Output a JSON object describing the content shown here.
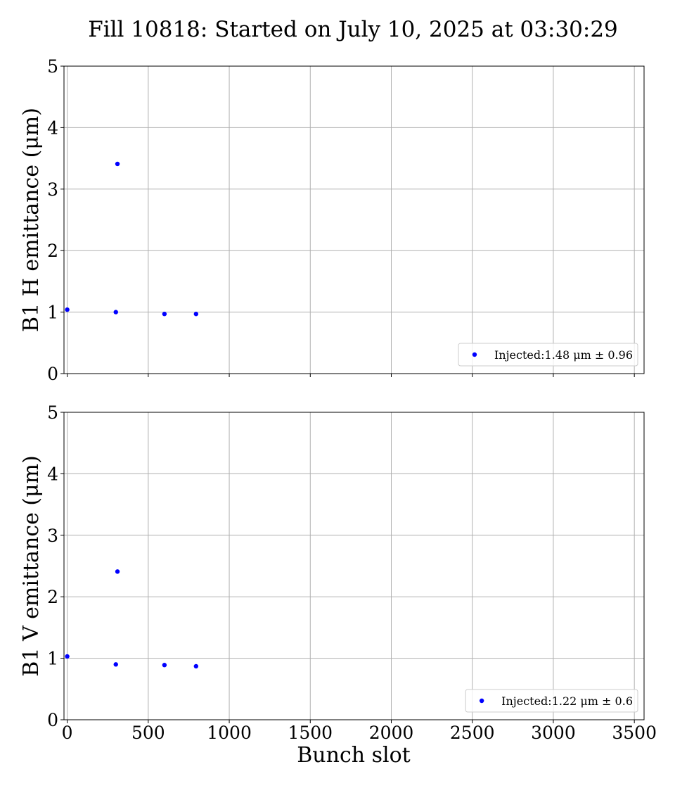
{
  "chart_data": {
    "type": "scatter",
    "title": "Fill 10818: Started on July 10, 2025 at 03:30:29",
    "xlabel": "Bunch slot",
    "xlim": [
      -20,
      3560
    ],
    "xticks": [
      0,
      500,
      1000,
      1500,
      2000,
      2500,
      3000,
      3500
    ],
    "grid": true,
    "marker_color": "#0000ff",
    "panels": [
      {
        "ylabel": "B1 H emittance (μm)",
        "ylim": [
          0,
          5
        ],
        "yticks": [
          0,
          1,
          2,
          3,
          4,
          5
        ],
        "legend_position": "lower-right",
        "series": [
          {
            "name": "Injected:1.48 μm ± 0.96",
            "color": "#0000ff",
            "points": [
              {
                "x": 0,
                "y": 1.04
              },
              {
                "x": 300,
                "y": 1.0
              },
              {
                "x": 310,
                "y": 3.41
              },
              {
                "x": 600,
                "y": 0.97
              },
              {
                "x": 795,
                "y": 0.97
              }
            ]
          }
        ]
      },
      {
        "ylabel": "B1 V emittance (μm)",
        "ylim": [
          0,
          5
        ],
        "yticks": [
          0,
          1,
          2,
          3,
          4,
          5
        ],
        "legend_position": "lower-right",
        "series": [
          {
            "name": "Injected:1.22 μm ± 0.6",
            "color": "#0000ff",
            "points": [
              {
                "x": 0,
                "y": 1.03
              },
              {
                "x": 300,
                "y": 0.9
              },
              {
                "x": 310,
                "y": 2.41
              },
              {
                "x": 600,
                "y": 0.89
              },
              {
                "x": 795,
                "y": 0.87
              }
            ]
          }
        ]
      }
    ]
  }
}
